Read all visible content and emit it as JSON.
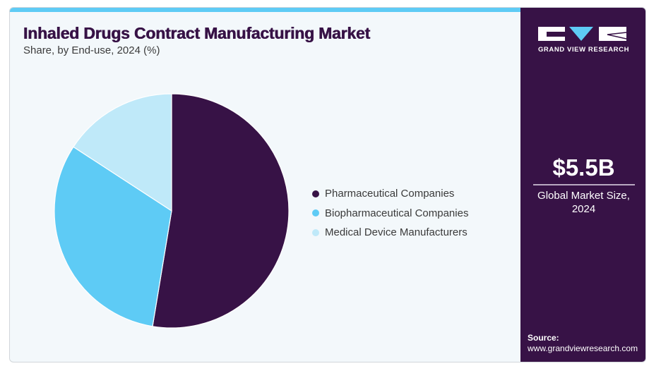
{
  "header": {
    "title": "Inhaled Drugs Contract Manufacturing Market",
    "subtitle": "Share, by End-use, 2024 (%)"
  },
  "sidebar": {
    "brand": "GRAND VIEW RESEARCH",
    "market_value": "$5.5B",
    "market_label_line1": "Global Market Size,",
    "market_label_line2": "2024",
    "source_label": "Source:",
    "source_url": "www.grandviewresearch.com"
  },
  "colors": {
    "accent_bar": "#5ecbf5",
    "sidebar_bg": "#371246",
    "card_bg": "#f3f8fb"
  },
  "chart_data": {
    "type": "pie",
    "title": "Inhaled Drugs Contract Manufacturing Market",
    "subtitle": "Share, by End-use, 2024 (%)",
    "start_angle": "12 o'clock",
    "direction": "clockwise",
    "legend_position": "right",
    "categories": [
      "Pharmaceutical Companies",
      "Biopharmaceutical Companies",
      "Medical Device Manufacturers"
    ],
    "values": [
      52.6,
      31.6,
      15.8
    ],
    "colors": [
      "#371246",
      "#5ecbf5",
      "#bfe9f9"
    ]
  }
}
